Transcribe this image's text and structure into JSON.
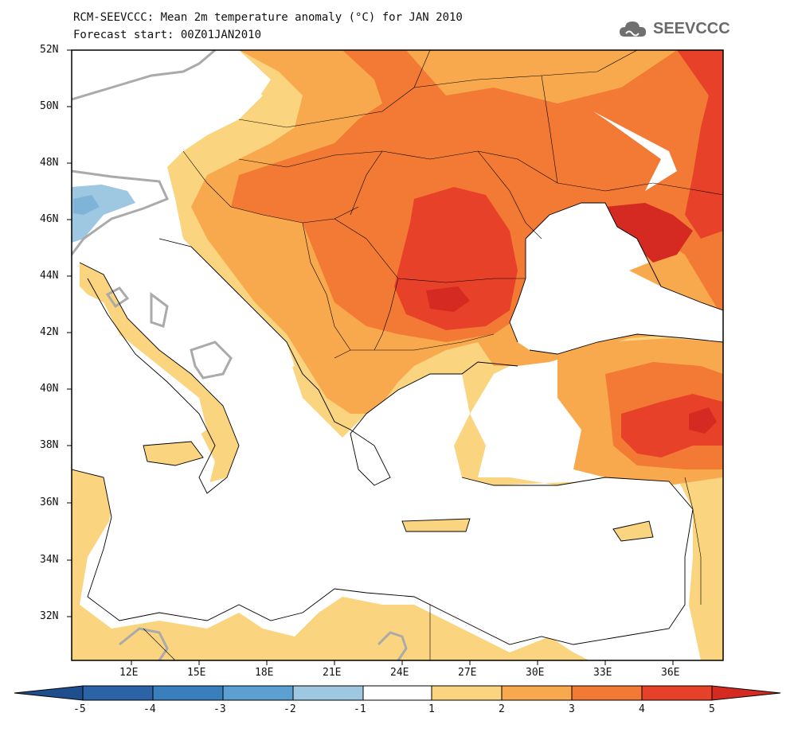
{
  "header": {
    "title_line1": "RCM-SEEVCCC: Mean 2m temperature anomaly (°C) for JAN 2010",
    "title_line2": "Forecast start: 00Z01JAN2010"
  },
  "logo": {
    "text": "SEEVCCC",
    "icon": "cloud-icon"
  },
  "map": {
    "variable": "Mean 2m temperature anomaly",
    "units": "°C",
    "lat_ticks": [
      "52N",
      "50N",
      "48N",
      "46N",
      "44N",
      "42N",
      "40N",
      "38N",
      "36N",
      "34N",
      "32N"
    ],
    "lon_ticks": [
      "12E",
      "15E",
      "18E",
      "21E",
      "24E",
      "27E",
      "30E",
      "33E",
      "36E"
    ]
  },
  "colorbar": {
    "labels": [
      "-5",
      "-4",
      "-3",
      "-2",
      "-1",
      "1",
      "2",
      "3",
      "4",
      "5"
    ],
    "colors": [
      "#2b63a6",
      "#3a7fbd",
      "#5c9fd1",
      "#9ec8e2",
      "#ffffff",
      "#fad47e",
      "#f9a94d",
      "#f27a35",
      "#e8412a"
    ]
  },
  "colors": {
    "anomaly_1_2": "#fad47e",
    "anomaly_2_3": "#f9a94d",
    "anomaly_3_4": "#f27a35",
    "anomaly_4_5": "#e8412a",
    "anomaly_gt_5": "#d42a22",
    "anomaly_neg_1_2": "#9ec8e2",
    "contour_zero": "#aaaaaa"
  }
}
